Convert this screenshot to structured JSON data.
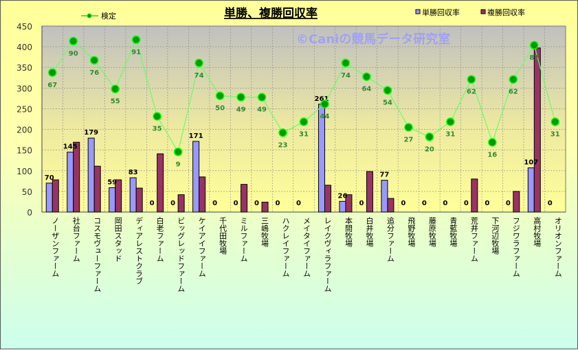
{
  "chart_data": {
    "type": "bar",
    "title": "単勝、複勝回収率",
    "watermark": "©Caniの競馬データ研究室",
    "ylim": [
      0,
      450
    ],
    "yticks": [
      0,
      50,
      100,
      150,
      200,
      250,
      300,
      350,
      400,
      450
    ],
    "secondary_ylim": [
      -35,
      101
    ],
    "grid": true,
    "legend_placement": "top",
    "categories": [
      "ノーザンファーム",
      "社台ファーム",
      "コスモヴューファーム",
      "岡田スタッド",
      "ディアレストクラブ",
      "白老ファーム",
      "ビッグレッドファーム",
      "ケイアイファーム",
      "千代田牧場",
      "ミルファーム",
      "三嶋牧場",
      "ハクレイファーム",
      "メイタイファーム",
      "レイクヴィラファーム",
      "本間牧場",
      "白井牧場",
      "追分ファーム",
      "飛野牧場",
      "藤原牧場",
      "青藍牧場",
      "荒井ファーム",
      "下河辺牧場",
      "フジワラファーム",
      "高村牧場",
      "オリオンファーム"
    ],
    "series": [
      {
        "name": "単勝回収率",
        "type": "bar",
        "color": "#9999ff",
        "values": [
          70,
          145,
          179,
          59,
          83,
          0,
          0,
          171,
          0,
          0,
          0,
          0,
          0,
          261,
          26,
          0,
          77,
          0,
          0,
          0,
          0,
          0,
          0,
          107,
          0
        ]
      },
      {
        "name": "複勝回収率",
        "type": "bar",
        "color": "#993366",
        "values": [
          78,
          169,
          111,
          78,
          58,
          141,
          42,
          85,
          0,
          67,
          24,
          0,
          0,
          65,
          42,
          98,
          33,
          0,
          0,
          0,
          80,
          0,
          50,
          397,
          0
        ]
      },
      {
        "name": "検定",
        "type": "line",
        "axis": "secondary",
        "color": "#66ff66",
        "marker_color": "#009900",
        "values": [
          67,
          90,
          76,
          55,
          91,
          35,
          9,
          74,
          50,
          49,
          49,
          23,
          31,
          44,
          74,
          64,
          54,
          27,
          20,
          31,
          62,
          16,
          62,
          87,
          31
        ]
      }
    ]
  }
}
